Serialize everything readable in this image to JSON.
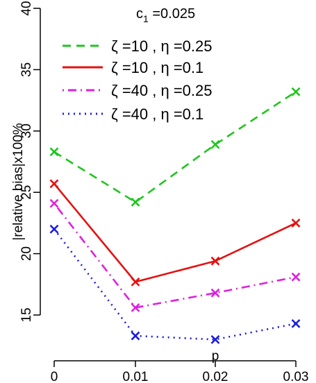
{
  "chart_data": {
    "type": "line",
    "title_main": "c",
    "title_sub": "1",
    "title_tail": " =0.025",
    "xlabel": "p",
    "ylabel": "|relative bias|x100%",
    "x": [
      0,
      0.01,
      0.02,
      0.03
    ],
    "x_tick_labels": [
      "0",
      "0.01",
      "0.02",
      "0.03"
    ],
    "y_ticks": [
      15,
      20,
      25,
      30,
      35,
      40
    ],
    "ylim": [
      12,
      40
    ],
    "grid": false,
    "legend_position": "top",
    "marker": "×",
    "series": [
      {
        "name": "ζ =10 , η =0.25",
        "color": "#1fc41f",
        "dash": "dashed",
        "values": [
          28.3,
          24.2,
          28.9,
          33.2
        ]
      },
      {
        "name": "ζ =10 , η =0.1",
        "color": "#e51010",
        "dash": "solid",
        "values": [
          25.7,
          17.7,
          19.4,
          22.5
        ]
      },
      {
        "name": "ζ =40 , η =0.25",
        "color": "#e01ee0",
        "dash": "dotdash",
        "values": [
          24.1,
          15.6,
          16.8,
          18.1
        ]
      },
      {
        "name": "ζ =40 , η =0.1",
        "color": "#1a1ae0",
        "dash": "dotted",
        "values": [
          22.0,
          13.3,
          13.0,
          14.3
        ]
      }
    ]
  }
}
